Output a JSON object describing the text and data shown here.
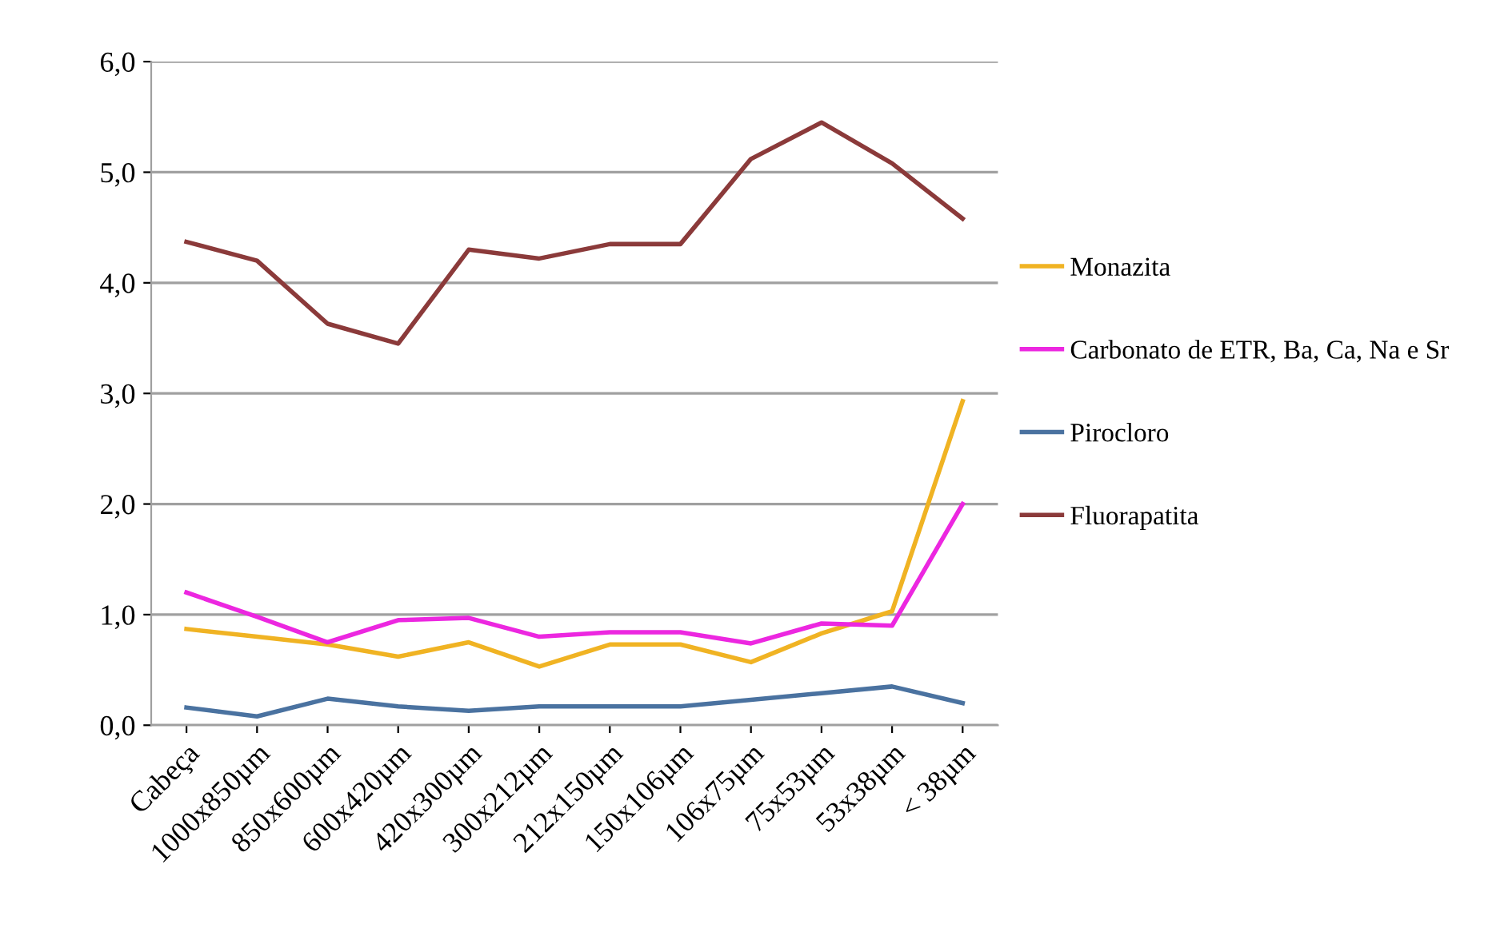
{
  "chart_data": {
    "type": "line",
    "categories": [
      "Cabeça",
      "1000x850µm",
      "850x600µm",
      "600x420µm",
      "420x300µm",
      "300x212µm",
      "212x150µm",
      "150x106µm",
      "106x75µm",
      "75x53µm",
      "53x38µm",
      "< 38µm"
    ],
    "series": [
      {
        "name": "Monazita",
        "color": "#f0b323",
        "values": [
          0.87,
          0.8,
          0.73,
          0.62,
          0.75,
          0.53,
          0.73,
          0.73,
          0.57,
          0.83,
          1.03,
          2.93
        ]
      },
      {
        "name": "Carbonato de ETR, Ba, Ca, Na e Sr",
        "color": "#ec27e0",
        "values": [
          1.2,
          0.98,
          0.75,
          0.95,
          0.97,
          0.8,
          0.84,
          0.84,
          0.74,
          0.92,
          0.9,
          2.0
        ]
      },
      {
        "name": "Pirocloro",
        "color": "#4a72a0",
        "values": [
          0.16,
          0.08,
          0.24,
          0.17,
          0.13,
          0.17,
          0.17,
          0.17,
          0.23,
          0.29,
          0.35,
          0.2
        ]
      },
      {
        "name": "Fluorapatita",
        "color": "#8b3a3a",
        "values": [
          4.37,
          4.2,
          3.63,
          3.45,
          4.3,
          4.22,
          4.35,
          4.35,
          5.12,
          5.45,
          5.08,
          4.58
        ]
      }
    ],
    "ylim": [
      0,
      6
    ],
    "yticks": [
      {
        "value": 0,
        "label": "0,0"
      },
      {
        "value": 1,
        "label": "1,0"
      },
      {
        "value": 2,
        "label": "2,0"
      },
      {
        "value": 3,
        "label": "3,0"
      },
      {
        "value": 4,
        "label": "4,0"
      },
      {
        "value": 5,
        "label": "5,0"
      },
      {
        "value": 6,
        "label": "6,0"
      }
    ],
    "grid": "y",
    "legend": "right",
    "marker": "none",
    "line_style": "solid"
  }
}
